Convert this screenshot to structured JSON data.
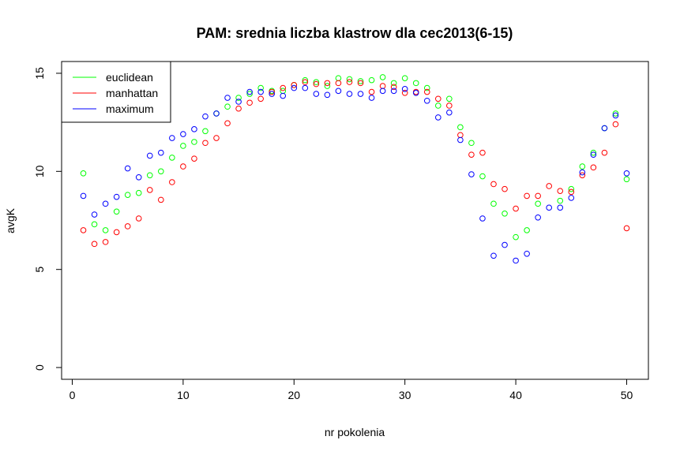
{
  "chart_data": {
    "type": "scatter",
    "title": "PAM: srednia liczba klastrow dla cec2013(6-15)",
    "xlabel": "nr pokolenia",
    "ylabel": "avgK",
    "xlim": [
      -0.96,
      51.96
    ],
    "ylim": [
      -0.6,
      15.6
    ],
    "x_ticks": [
      0,
      10,
      20,
      30,
      40,
      50
    ],
    "y_ticks": [
      0,
      5,
      10,
      15
    ],
    "legend_position": "top-left",
    "x": [
      1,
      2,
      3,
      4,
      5,
      6,
      7,
      8,
      9,
      10,
      11,
      12,
      13,
      14,
      15,
      16,
      17,
      18,
      19,
      20,
      21,
      22,
      23,
      24,
      25,
      26,
      27,
      28,
      29,
      30,
      31,
      32,
      33,
      34,
      35,
      36,
      37,
      38,
      39,
      40,
      41,
      42,
      43,
      44,
      45,
      46,
      47,
      48,
      49,
      50
    ],
    "series": [
      {
        "name": "euclidean",
        "color": "#00ff00",
        "values": [
          9.9,
          7.3,
          7.0,
          7.95,
          8.8,
          8.9,
          9.8,
          10.0,
          10.7,
          11.3,
          11.5,
          12.05,
          12.95,
          13.3,
          13.75,
          13.95,
          14.25,
          14.1,
          14.1,
          14.4,
          14.65,
          14.55,
          14.35,
          14.75,
          14.7,
          14.6,
          14.65,
          14.8,
          14.5,
          14.75,
          14.5,
          14.25,
          13.35,
          13.7,
          12.25,
          11.45,
          9.75,
          8.35,
          7.85,
          6.65,
          7.0,
          8.35,
          null,
          8.5,
          9.1,
          10.25,
          10.95,
          12.2,
          12.95,
          9.6
        ]
      },
      {
        "name": "manhattan",
        "color": "#ff0000",
        "values": [
          7.0,
          6.3,
          6.4,
          6.9,
          7.2,
          7.6,
          9.05,
          8.55,
          9.45,
          10.25,
          10.65,
          11.45,
          11.7,
          12.45,
          13.2,
          13.5,
          13.7,
          14.05,
          14.25,
          14.4,
          14.55,
          14.45,
          14.5,
          14.5,
          14.55,
          14.5,
          14.05,
          14.35,
          14.3,
          14.0,
          14.05,
          14.05,
          13.7,
          13.35,
          11.85,
          10.85,
          10.95,
          9.35,
          9.1,
          8.1,
          8.75,
          8.75,
          9.25,
          9.0,
          8.95,
          9.8,
          10.2,
          10.95,
          12.4,
          7.1
        ]
      },
      {
        "name": "maximum",
        "color": "#0000ff",
        "values": [
          8.75,
          7.8,
          8.35,
          8.7,
          10.15,
          9.7,
          10.8,
          10.95,
          11.7,
          11.9,
          12.15,
          12.8,
          12.95,
          13.75,
          13.55,
          14.05,
          14.05,
          13.95,
          13.85,
          14.25,
          14.25,
          13.95,
          13.9,
          14.1,
          13.95,
          13.95,
          13.75,
          14.1,
          14.1,
          14.2,
          14.0,
          13.6,
          12.75,
          13.0,
          11.6,
          9.85,
          7.6,
          5.7,
          6.25,
          5.45,
          5.8,
          7.65,
          8.15,
          8.15,
          8.65,
          9.95,
          10.85,
          12.2,
          12.85,
          9.9
        ]
      }
    ]
  }
}
